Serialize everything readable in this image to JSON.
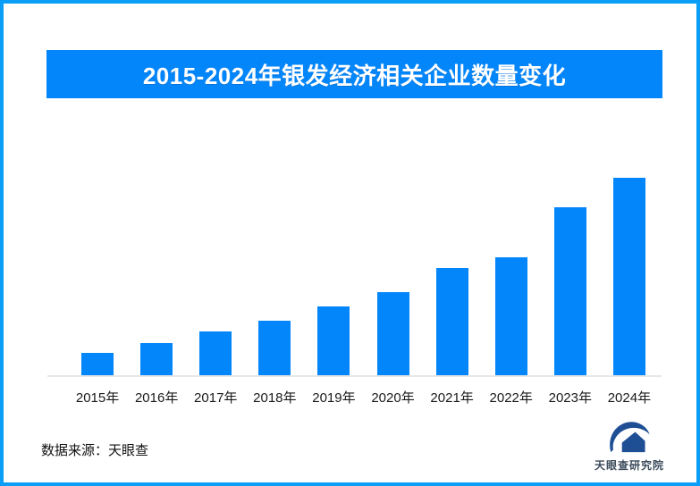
{
  "page": {
    "background_color": "#ffffff",
    "border_color": "#0a9ef7"
  },
  "header": {
    "title": "2015-2024年银发经济相关企业数量变化",
    "bg_color": "#0486fb",
    "text_color": "#ffffff"
  },
  "chart_data": {
    "type": "bar",
    "title": "2015-2024年银发经济相关企业数量变化",
    "categories": [
      "2015年",
      "2016年",
      "2017年",
      "2018年",
      "2019年",
      "2020年",
      "2021年",
      "2022年",
      "2023年",
      "2024年"
    ],
    "relative_values_pct_of_max": [
      11.8,
      16.6,
      22.3,
      28.0,
      35.1,
      42.3,
      54.3,
      60.1,
      85.3,
      100
    ],
    "value_labels_shown": false,
    "y_axis_shown": false,
    "grid": false,
    "xlabel": "",
    "ylabel": "",
    "legend": "none",
    "bar_color": "#0486fb",
    "axis_line_color": "#e6e6e6",
    "tick_label_color": "#1a1a1a"
  },
  "footer": {
    "source_label": "数据来源：天眼查",
    "logo": {
      "icon": "tianyancha-logo-icon",
      "icon_color": "#1e4e94",
      "text": "天眼查研究院",
      "text_color": "#3a4a5a"
    }
  }
}
